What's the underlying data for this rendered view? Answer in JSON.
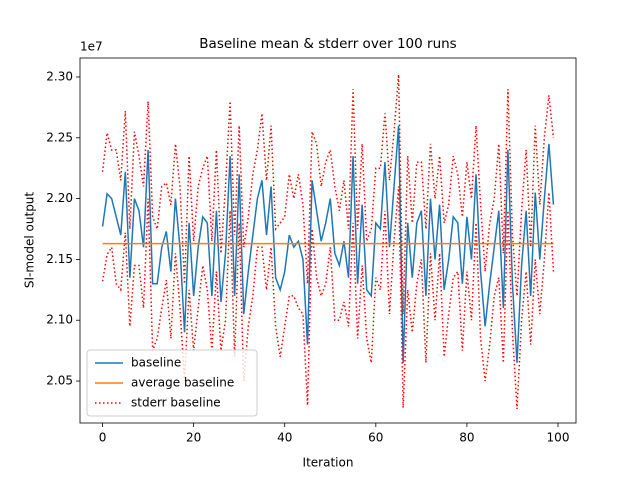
{
  "chart_data": {
    "type": "line",
    "title": "Baseline mean & stderr over 100 runs",
    "x_label": "Iteration",
    "y_label": "SI-model output",
    "y_offset_label": "1e7",
    "x": [
      0,
      1,
      2,
      3,
      4,
      5,
      6,
      7,
      8,
      9,
      10,
      11,
      12,
      13,
      14,
      15,
      16,
      17,
      18,
      19,
      20,
      21,
      22,
      23,
      24,
      25,
      26,
      27,
      28,
      29,
      30,
      31,
      32,
      33,
      34,
      35,
      36,
      37,
      38,
      39,
      40,
      41,
      42,
      43,
      44,
      45,
      46,
      47,
      48,
      49,
      50,
      51,
      52,
      53,
      54,
      55,
      56,
      57,
      58,
      59,
      60,
      61,
      62,
      63,
      64,
      65,
      66,
      67,
      68,
      69,
      70,
      71,
      72,
      73,
      74,
      75,
      76,
      77,
      78,
      79,
      80,
      81,
      82,
      83,
      84,
      85,
      86,
      87,
      88,
      89,
      90,
      91,
      92,
      93,
      94,
      95,
      96,
      97,
      98,
      99
    ],
    "xlim": [
      -4.95,
      103.95
    ],
    "xticks": [
      0,
      20,
      40,
      60,
      80,
      100
    ],
    "ylim": [
      2.0155,
      2.3156
    ],
    "yticks": [
      {
        "value": 2.05,
        "label": "2.05"
      },
      {
        "value": 2.1,
        "label": "2.10"
      },
      {
        "value": 2.15,
        "label": "2.15"
      },
      {
        "value": 2.2,
        "label": "2.20"
      },
      {
        "value": 2.25,
        "label": "2.25"
      },
      {
        "value": 2.3,
        "label": "2.30"
      }
    ],
    "legend": "lower left",
    "series": [
      {
        "name": "baseline",
        "color": "#1f77b4",
        "style": "solid",
        "values": [
          2.177,
          2.204,
          2.2,
          2.185,
          2.17,
          2.222,
          2.135,
          2.2,
          2.19,
          2.16,
          2.24,
          2.13,
          2.13,
          2.16,
          2.173,
          2.14,
          2.2,
          2.16,
          2.09,
          2.18,
          2.12,
          2.16,
          2.185,
          2.18,
          2.12,
          2.19,
          2.115,
          2.155,
          2.235,
          2.12,
          2.22,
          2.105,
          2.14,
          2.17,
          2.2,
          2.215,
          2.17,
          2.21,
          2.135,
          2.125,
          2.14,
          2.17,
          2.16,
          2.165,
          2.15,
          2.08,
          2.215,
          2.19,
          2.165,
          2.18,
          2.2,
          2.155,
          2.145,
          2.165,
          2.135,
          2.235,
          2.13,
          2.195,
          2.125,
          2.12,
          2.18,
          2.175,
          2.23,
          2.16,
          2.21,
          2.26,
          2.065,
          2.18,
          2.135,
          2.18,
          2.19,
          2.12,
          2.2,
          2.15,
          2.195,
          2.125,
          2.15,
          2.185,
          2.18,
          2.13,
          2.185,
          2.15,
          2.22,
          2.14,
          2.095,
          2.13,
          2.16,
          2.19,
          2.11,
          2.24,
          2.13,
          2.065,
          2.145,
          2.19,
          2.12,
          2.205,
          2.15,
          2.2,
          2.245,
          2.195
        ]
      },
      {
        "name": "average baseline",
        "color": "#ff7f0e",
        "style": "solid",
        "values": [
          2.163,
          2.163,
          2.163,
          2.163,
          2.163,
          2.163,
          2.163,
          2.163,
          2.163,
          2.163,
          2.163,
          2.163,
          2.163,
          2.163,
          2.163,
          2.163,
          2.163,
          2.163,
          2.163,
          2.163,
          2.163,
          2.163,
          2.163,
          2.163,
          2.163,
          2.163,
          2.163,
          2.163,
          2.163,
          2.163,
          2.163,
          2.163,
          2.163,
          2.163,
          2.163,
          2.163,
          2.163,
          2.163,
          2.163,
          2.163,
          2.163,
          2.163,
          2.163,
          2.163,
          2.163,
          2.163,
          2.163,
          2.163,
          2.163,
          2.163,
          2.163,
          2.163,
          2.163,
          2.163,
          2.163,
          2.163,
          2.163,
          2.163,
          2.163,
          2.163,
          2.163,
          2.163,
          2.163,
          2.163,
          2.163,
          2.163,
          2.163,
          2.163,
          2.163,
          2.163,
          2.163,
          2.163,
          2.163,
          2.163,
          2.163,
          2.163,
          2.163,
          2.163,
          2.163,
          2.163,
          2.163,
          2.163,
          2.163,
          2.163,
          2.163,
          2.163,
          2.163,
          2.163,
          2.163,
          2.163,
          2.163,
          2.163,
          2.163,
          2.163,
          2.163,
          2.163,
          2.163,
          2.163,
          2.163,
          2.163
        ]
      },
      {
        "name": "stderr baseline",
        "color": "#ff0000",
        "style": "dotted",
        "values": [
          2.222,
          2.254,
          2.24,
          2.24,
          2.215,
          2.272,
          2.175,
          2.255,
          2.235,
          2.21,
          2.28,
          2.185,
          2.175,
          2.21,
          2.213,
          2.195,
          2.245,
          2.21,
          2.13,
          2.235,
          2.165,
          2.21,
          2.225,
          2.235,
          2.165,
          2.24,
          2.155,
          2.21,
          2.28,
          2.17,
          2.26,
          2.16,
          2.185,
          2.22,
          2.24,
          2.27,
          2.215,
          2.26,
          2.175,
          2.18,
          2.185,
          2.22,
          2.2,
          2.22,
          2.195,
          2.13,
          2.255,
          2.245,
          2.21,
          2.23,
          2.24,
          2.21,
          2.19,
          2.215,
          2.175,
          2.29,
          2.175,
          2.245,
          2.165,
          2.175,
          2.225,
          2.225,
          2.27,
          2.215,
          2.255,
          2.302,
          2.105,
          2.235,
          2.18,
          2.23,
          2.23,
          2.175,
          2.245,
          2.2,
          2.235,
          2.18,
          2.195,
          2.235,
          2.22,
          2.185,
          2.23,
          2.2,
          2.26,
          2.195,
          2.14,
          2.18,
          2.2,
          2.245,
          2.155,
          2.29,
          2.17,
          2.12,
          2.19,
          2.24,
          2.16,
          2.26,
          2.195,
          2.25,
          2.285,
          2.25
        ],
        "values_lower": [
          2.132,
          2.154,
          2.16,
          2.13,
          2.125,
          2.172,
          2.095,
          2.145,
          2.145,
          2.11,
          2.2,
          2.075,
          2.085,
          2.11,
          2.133,
          2.085,
          2.155,
          2.11,
          2.05,
          2.125,
          2.075,
          2.11,
          2.145,
          2.125,
          2.075,
          2.14,
          2.075,
          2.1,
          2.19,
          2.07,
          2.18,
          2.05,
          2.095,
          2.12,
          2.16,
          2.16,
          2.125,
          2.16,
          2.095,
          2.07,
          2.095,
          2.12,
          2.12,
          2.11,
          2.105,
          2.03,
          2.175,
          2.135,
          2.12,
          2.13,
          2.16,
          2.1,
          2.1,
          2.115,
          2.095,
          2.18,
          2.085,
          2.145,
          2.085,
          2.065,
          2.135,
          2.125,
          2.19,
          2.105,
          2.165,
          2.21,
          2.028,
          2.125,
          2.09,
          2.13,
          2.15,
          2.065,
          2.155,
          2.1,
          2.155,
          2.07,
          2.105,
          2.135,
          2.14,
          2.075,
          2.14,
          2.1,
          2.18,
          2.085,
          2.05,
          2.08,
          2.12,
          2.135,
          2.065,
          2.19,
          2.09,
          2.027,
          2.1,
          2.14,
          2.08,
          2.15,
          2.105,
          2.15,
          2.205,
          2.14
        ]
      }
    ]
  }
}
